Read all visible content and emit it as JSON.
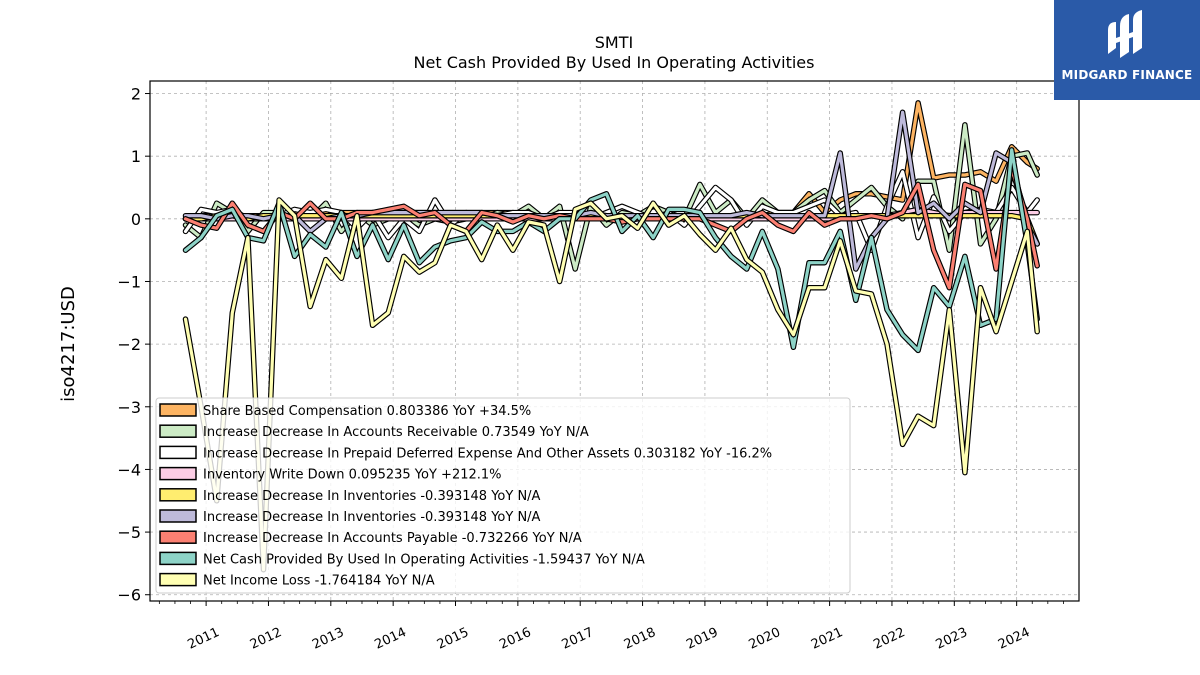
{
  "chart_data": {
    "type": "line",
    "title": "SMTI",
    "subtitle": "Net Cash Provided By Used In Operating Activities",
    "ylabel": "iso4217:USD",
    "xlabel": "",
    "ylim": [
      -6.1,
      2.2
    ],
    "xlim": [
      2010.1,
      2025.0
    ],
    "yticks": [
      2,
      1,
      0,
      -1,
      -2,
      -3,
      -4,
      -5,
      -6
    ],
    "ytick_labels": [
      "2",
      "1",
      "0",
      "−1",
      "−2",
      "−3",
      "−4",
      "−5",
      "−6"
    ],
    "xticks": [
      2011,
      2012,
      2013,
      2014,
      2015,
      2016,
      2017,
      2018,
      2019,
      2020,
      2021,
      2022,
      2023,
      2024
    ],
    "xtick_labels": [
      "2011",
      "2012",
      "2013",
      "2014",
      "2015",
      "2016",
      "2017",
      "2018",
      "2019",
      "2020",
      "2021",
      "2022",
      "2023",
      "2024"
    ],
    "grid": true,
    "legend_placement": "lower-left",
    "x": [
      2010.67,
      2010.92,
      2011.17,
      2011.42,
      2011.67,
      2011.92,
      2012.17,
      2012.42,
      2012.67,
      2012.92,
      2013.17,
      2013.42,
      2013.67,
      2013.92,
      2014.17,
      2014.42,
      2014.67,
      2014.92,
      2015.17,
      2015.42,
      2015.67,
      2015.92,
      2016.17,
      2016.42,
      2016.67,
      2016.92,
      2017.17,
      2017.42,
      2017.67,
      2017.92,
      2018.17,
      2018.42,
      2018.67,
      2018.92,
      2019.17,
      2019.42,
      2019.67,
      2019.92,
      2020.17,
      2020.42,
      2020.67,
      2020.92,
      2021.17,
      2021.42,
      2021.67,
      2021.92,
      2022.17,
      2022.42,
      2022.67,
      2022.92,
      2023.17,
      2023.42,
      2023.67,
      2023.92,
      2024.17,
      2024.33
    ],
    "series": [
      {
        "name": "Share Based Compensation  0.803386 YoY +34.5%",
        "color": "#fdb462",
        "values": [
          0.0,
          0.05,
          0.05,
          0.05,
          0.05,
          0.05,
          0.08,
          0.08,
          0.08,
          0.1,
          0.1,
          0.1,
          0.1,
          0.1,
          0.1,
          0.1,
          0.1,
          0.1,
          0.1,
          0.1,
          0.1,
          0.1,
          0.05,
          0.05,
          0.05,
          0.05,
          0.05,
          0.05,
          0.05,
          0.05,
          0.05,
          0.05,
          0.05,
          0.05,
          0.05,
          0.05,
          0.05,
          0.05,
          0.1,
          0.1,
          0.4,
          0.1,
          0.3,
          0.4,
          0.4,
          0.35,
          0.3,
          1.85,
          0.65,
          0.7,
          0.7,
          0.75,
          0.6,
          1.15,
          0.9,
          0.8
        ]
      },
      {
        "name": "Increase Decrease In Accounts Receivable  0.73549 YoY N/A",
        "color": "#ccebc5",
        "values": [
          -0.1,
          -0.3,
          0.25,
          0.1,
          -0.2,
          0.1,
          0.1,
          0.0,
          0.0,
          0.25,
          -0.2,
          0.1,
          -0.1,
          0.0,
          0.05,
          -0.1,
          0.0,
          -0.05,
          0.0,
          0.0,
          0.1,
          0.05,
          0.2,
          0.0,
          0.2,
          -0.8,
          0.2,
          -0.1,
          0.1,
          0.05,
          0.2,
          0.1,
          0.0,
          0.55,
          0.1,
          0.3,
          0.0,
          0.3,
          0.1,
          0.1,
          0.3,
          0.45,
          0.1,
          0.3,
          0.5,
          0.2,
          0.0,
          0.6,
          0.6,
          -0.5,
          1.5,
          -0.4,
          0.0,
          1.0,
          1.05,
          0.7
        ]
      },
      {
        "name": "Increase Decrease In Prepaid Deferred Expense And Other Assets  0.303182 YoY -16.2%",
        "color": "#ffffff",
        "values": [
          -0.2,
          0.15,
          0.1,
          0.15,
          0.0,
          0.05,
          0.05,
          0.15,
          0.1,
          0.15,
          0.1,
          -0.15,
          0.1,
          -0.3,
          0.0,
          -0.2,
          0.3,
          -0.1,
          0.1,
          0.05,
          0.05,
          0.1,
          0.1,
          0.0,
          0.1,
          0.1,
          0.0,
          0.1,
          0.2,
          0.1,
          0.0,
          0.1,
          -0.1,
          0.2,
          0.5,
          0.3,
          -0.1,
          0.2,
          0.1,
          0.1,
          0.2,
          0.3,
          0.05,
          0.1,
          -0.5,
          0.2,
          0.75,
          -0.3,
          0.35,
          -0.2,
          0.1,
          0.15,
          0.1,
          0.5,
          0.1,
          0.3
        ]
      },
      {
        "name": "Inventory Write Down  0.095235 YoY +212.1%",
        "color": "#fccde5",
        "values": [
          0.0,
          0.0,
          0.0,
          0.0,
          0.0,
          0.0,
          0.0,
          0.0,
          0.0,
          0.0,
          0.0,
          0.0,
          0.0,
          0.0,
          0.0,
          0.0,
          0.0,
          0.0,
          0.0,
          0.0,
          0.0,
          0.0,
          0.0,
          0.0,
          0.0,
          0.0,
          0.0,
          0.0,
          0.0,
          0.0,
          0.0,
          0.0,
          0.0,
          0.0,
          0.0,
          0.0,
          0.0,
          0.0,
          0.0,
          0.0,
          0.0,
          0.0,
          0.0,
          0.05,
          0.05,
          0.05,
          0.1,
          0.15,
          0.1,
          0.05,
          0.1,
          0.1,
          0.1,
          0.1,
          0.1,
          0.1
        ]
      },
      {
        "name": "Increase Decrease In Inventories  -0.393148 YoY N/A",
        "color": "#ffed6f",
        "values": [
          0.0,
          0.0,
          0.05,
          0.05,
          0.0,
          0.05,
          0.05,
          0.05,
          0.05,
          0.05,
          0.05,
          0.05,
          0.05,
          0.05,
          0.05,
          0.05,
          0.05,
          0.05,
          0.05,
          0.05,
          0.05,
          0.05,
          0.05,
          0.05,
          0.05,
          0.05,
          0.05,
          0.05,
          0.05,
          0.05,
          0.05,
          0.05,
          0.05,
          0.05,
          0.05,
          0.05,
          0.05,
          0.05,
          0.05,
          0.05,
          0.05,
          0.05,
          0.05,
          0.05,
          0.05,
          0.05,
          0.05,
          0.05,
          0.05,
          0.05,
          0.05,
          0.05,
          0.05,
          0.05,
          0.0,
          -0.4
        ]
      },
      {
        "name": "Increase Decrease In Inventories  -0.393148 YoY N/A",
        "color": "#bebada",
        "values": [
          0.05,
          0.05,
          0.0,
          0.05,
          0.05,
          0.0,
          0.05,
          0.05,
          -0.2,
          0.0,
          0.05,
          0.05,
          0.1,
          0.1,
          0.1,
          0.1,
          0.1,
          0.1,
          0.1,
          0.1,
          0.05,
          0.05,
          0.05,
          0.05,
          0.05,
          0.05,
          0.1,
          0.05,
          0.05,
          0.05,
          0.05,
          0.05,
          0.05,
          0.05,
          0.05,
          0.05,
          0.1,
          0.05,
          0.05,
          0.05,
          0.05,
          0.05,
          1.05,
          -0.8,
          -0.3,
          0.0,
          1.7,
          0.1,
          0.25,
          0.0,
          0.25,
          0.1,
          1.05,
          0.9,
          -0.1,
          -0.4
        ]
      },
      {
        "name": "Increase Decrease In Accounts Payable  -0.732266 YoY N/A",
        "color": "#fb8072",
        "values": [
          0.0,
          -0.1,
          -0.15,
          0.25,
          -0.1,
          -0.2,
          0.1,
          0.0,
          0.25,
          0.0,
          0.0,
          0.1,
          0.1,
          0.15,
          0.2,
          0.05,
          0.1,
          -0.1,
          -0.2,
          0.1,
          0.05,
          -0.05,
          0.05,
          0.0,
          0.05,
          0.0,
          0.0,
          0.0,
          -0.05,
          0.0,
          0.0,
          0.0,
          0.0,
          0.0,
          -0.1,
          -0.2,
          0.0,
          0.1,
          -0.1,
          -0.2,
          0.1,
          -0.1,
          0.0,
          0.0,
          0.05,
          0.0,
          0.1,
          0.55,
          -0.5,
          -1.1,
          0.55,
          0.45,
          -0.8,
          0.8,
          0.0,
          -0.75
        ]
      },
      {
        "name": "Net Cash Provided By Used In Operating Activities  -1.59437 YoY N/A",
        "color": "#8dd3c7",
        "values": [
          -0.5,
          -0.3,
          0.05,
          0.15,
          -0.3,
          -0.35,
          0.25,
          -0.6,
          -0.25,
          -0.45,
          0.1,
          -0.6,
          -0.1,
          -0.65,
          -0.1,
          -0.7,
          -0.45,
          -0.35,
          -0.3,
          -0.05,
          -0.2,
          -0.2,
          -0.05,
          -0.2,
          0.0,
          0.0,
          0.3,
          0.4,
          -0.2,
          0.05,
          -0.3,
          0.15,
          0.15,
          0.1,
          -0.3,
          -0.6,
          -0.8,
          -0.2,
          -0.8,
          -2.05,
          -0.7,
          -0.7,
          -0.2,
          -1.3,
          -0.3,
          -1.45,
          -1.85,
          -2.1,
          -1.1,
          -1.4,
          -0.6,
          -1.7,
          -1.6,
          1.1,
          -0.4,
          -1.6
        ]
      },
      {
        "name": "Net Income Loss  -1.764184 YoY N/A",
        "color": "#ffffb3",
        "values": [
          -1.6,
          -3.0,
          -4.5,
          -1.5,
          -0.3,
          -5.6,
          0.3,
          0.05,
          -1.4,
          -0.65,
          -0.95,
          0.05,
          -1.7,
          -1.5,
          -0.6,
          -0.85,
          -0.7,
          -0.1,
          -0.2,
          -0.65,
          -0.1,
          -0.5,
          -0.05,
          -0.1,
          -1.0,
          0.15,
          0.25,
          0.0,
          0.05,
          -0.15,
          0.25,
          -0.1,
          0.05,
          -0.25,
          -0.5,
          -0.15,
          -0.65,
          -0.85,
          -1.45,
          -1.85,
          -1.1,
          -1.1,
          -0.35,
          -1.15,
          -1.2,
          -2.0,
          -3.6,
          -3.15,
          -3.3,
          -1.45,
          -4.05,
          -1.1,
          -1.8,
          -1.0,
          -0.2,
          -1.8
        ]
      }
    ]
  },
  "logo": {
    "text": "MIDGARD FINANCE",
    "background": "#2a5aa8"
  }
}
